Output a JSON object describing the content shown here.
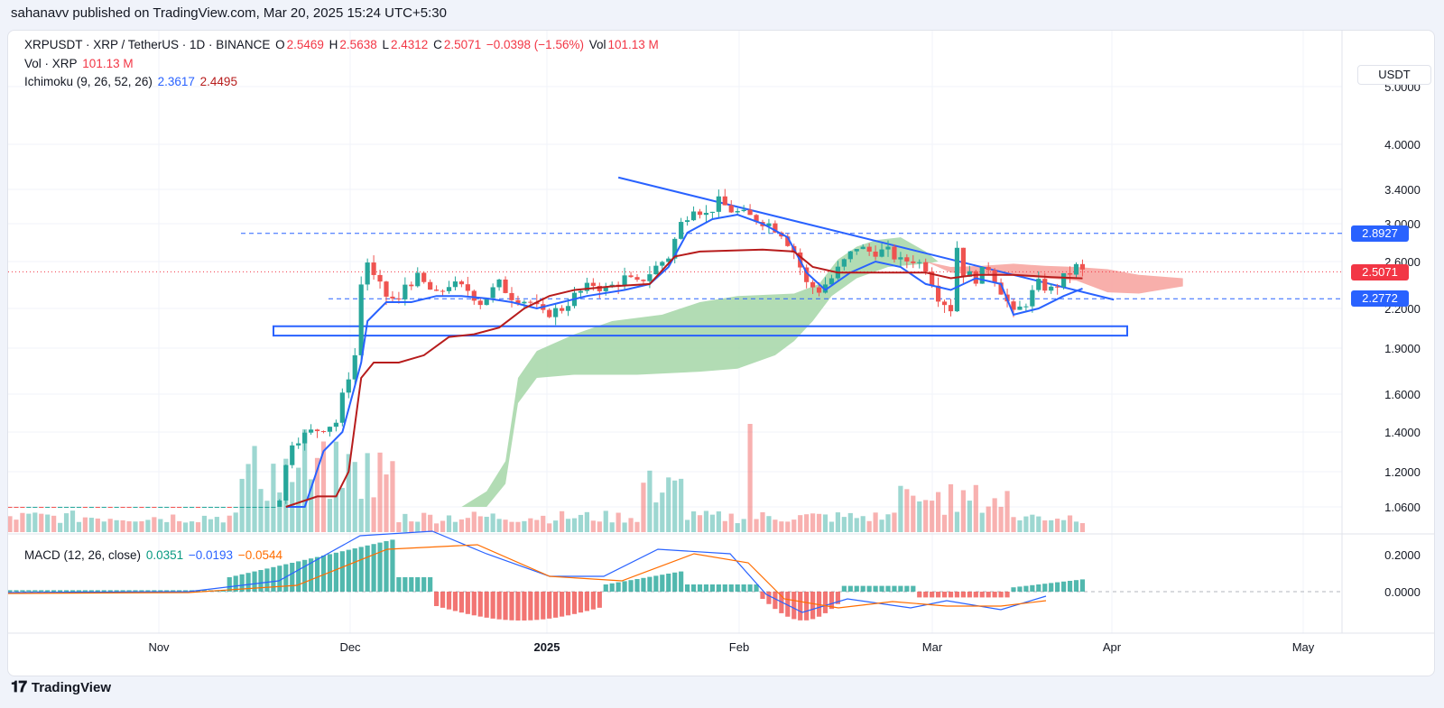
{
  "header": {
    "published": "sahanavv published on TradingView.com, Mar 20, 2025 15:24 UTC+5:30"
  },
  "legend": {
    "symbol": "XRPUSDT · XRP / TetherUS · 1D · BINANCE",
    "o_label": "O",
    "o": "2.5469",
    "h_label": "H",
    "h": "2.5638",
    "l_label": "L",
    "l": "2.4312",
    "c_label": "C",
    "c": "2.5071",
    "change": "−0.0398 (−1.56%)",
    "vol_label": "Vol",
    "vol": "101.13 M",
    "vol_row_label": "Vol · XRP",
    "vol_row_value": "101.13 M",
    "ichimoku_label": "Ichimoku (9, 26, 52, 26)",
    "ichimoku_conv": "2.3617",
    "ichimoku_base": "2.4495",
    "macd_label": "MACD (12, 26, close)",
    "macd_hist": "0.0351",
    "macd_line": "−0.0193",
    "macd_signal": "−0.0544"
  },
  "currency_button": "USDT",
  "price_labels": {
    "resistance": "2.8927",
    "last": "2.5071",
    "support": "2.2772"
  },
  "footer": {
    "brand": "TradingView"
  },
  "colors": {
    "up": "#26a69a",
    "down": "#ef5350",
    "conversion": "#2962ff",
    "base": "#b71c1c",
    "cloud_bull": "#a5d6a7",
    "cloud_bear": "#f7a6a2",
    "macd": "#2962ff",
    "signal": "#ff6d00"
  },
  "chart_data": {
    "type": "candlestick",
    "price_axis_ticks": [
      "5.0000",
      "4.0000",
      "3.4000",
      "3.0000",
      "2.6000",
      "2.2000",
      "1.9000",
      "1.6000",
      "1.4000",
      "1.2000",
      "1.0600"
    ],
    "macd_axis_ticks": [
      "0.2000",
      "0.0000"
    ],
    "x_ticks": [
      "Nov",
      "Dec",
      "2025",
      "Feb",
      "Mar",
      "Apr",
      "May"
    ],
    "horizontal_levels": [
      2.8927,
      2.5071,
      2.2772
    ],
    "support_zone": [
      1.99,
      2.06
    ],
    "trendline": {
      "from": [
        "2025-01-14",
        3.55
      ],
      "to": [
        "2025-04-03",
        2.27
      ]
    }
  }
}
